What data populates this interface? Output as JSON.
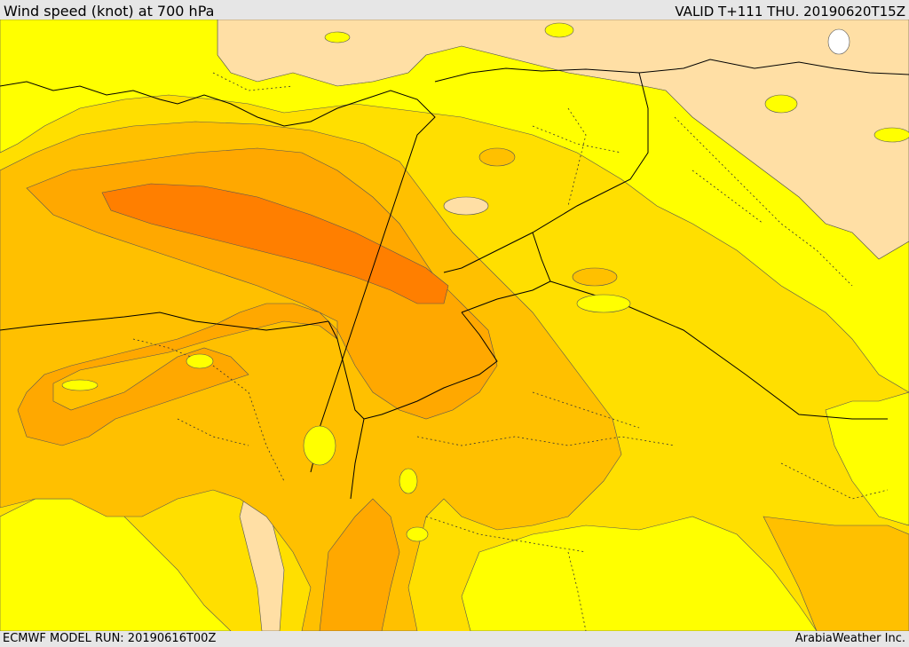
{
  "header": {
    "title": "Wind speed (knot) at 700 hPa",
    "valid": "VALID T+111 THU. 20190620T15Z"
  },
  "footer": {
    "model_run": "ECMWF MODEL RUN: 20190616T00Z",
    "credit": "ArabiaWeather Inc."
  },
  "map": {
    "variable": "wind speed",
    "level": "700 hPa",
    "unit": "knot",
    "colors": {
      "band_1": "#ffdfa5",
      "band_2": "#ffff00",
      "band_3": "#ffdf00",
      "band_4": "#ffc000",
      "band_5": "#ffa800",
      "band_6": "#ff7f00",
      "coastline": "#000000",
      "border": "#000000"
    }
  }
}
